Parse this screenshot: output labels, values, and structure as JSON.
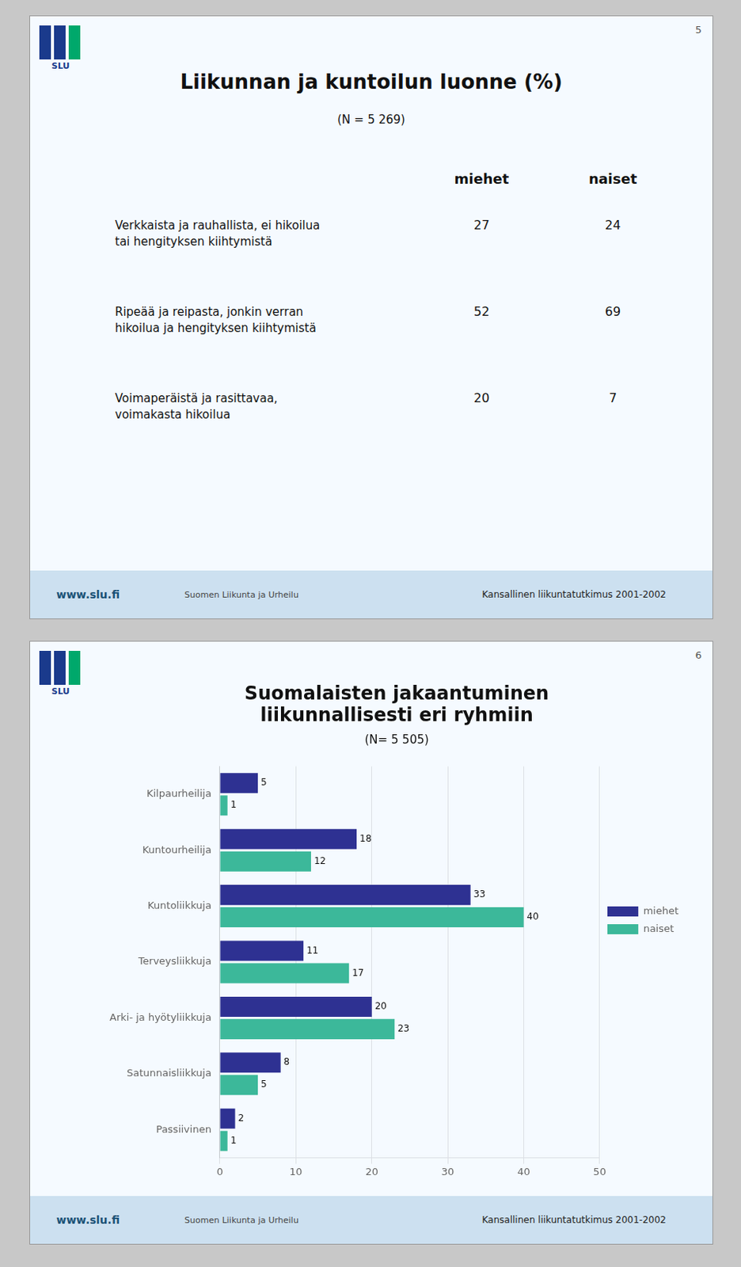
{
  "chart_data": [
    {
      "type": "table",
      "title": "Liikunnan ja kuntoilun luonne (%)",
      "subtitle": "(N = 5 269)",
      "categories": [
        "Verkkaista ja rauhallista, ei hikoilua\ntai hengityksen kiihtymistä",
        "Ripeää ja reipasta, jonkin verran\nhikoilua ja hengityksen kiihtymistä",
        "Voimaperäistä ja rasittavaa,\nvoimakasta hikoilua"
      ],
      "series": [
        {
          "name": "miehet",
          "values": [
            27,
            52,
            20
          ]
        },
        {
          "name": "naiset",
          "values": [
            24,
            69,
            7
          ]
        }
      ],
      "annotations": [
        "5",
        "SLU",
        "www.slu.fi",
        "Suomen Liikunta ja Urheilu",
        "Kansallinen liikuntatutkimus 2001-2002"
      ]
    },
    {
      "type": "bar",
      "orientation": "horizontal",
      "title": "Suomalaisten jakaantuminen\nliikunnallisesti eri ryhmiin",
      "subtitle": "(N= 5 505)",
      "categories": [
        "Kilpaurheilija",
        "Kuntourheilija",
        "Kuntoliikkuja",
        "Terveysliikkuja",
        "Arki- ja hyötyliikkuja",
        "Satunnaisliikkuja",
        "Passiivinen"
      ],
      "series": [
        {
          "name": "miehet",
          "color": "#2e3192",
          "values": [
            5,
            18,
            33,
            11,
            20,
            8,
            2
          ]
        },
        {
          "name": "naiset",
          "color": "#3cb89a",
          "values": [
            1,
            12,
            40,
            17,
            23,
            5,
            1
          ]
        }
      ],
      "xlim": [
        0,
        50
      ],
      "xticks": [
        0,
        10,
        20,
        30,
        40,
        50
      ],
      "grid": true,
      "legend": "right",
      "data_labels": true,
      "annotations": [
        "6",
        "SLU",
        "www.slu.fi",
        "Suomen Liikunta ja Urheilu",
        "Kansallinen liikuntatutkimus 2001-2002"
      ]
    }
  ]
}
